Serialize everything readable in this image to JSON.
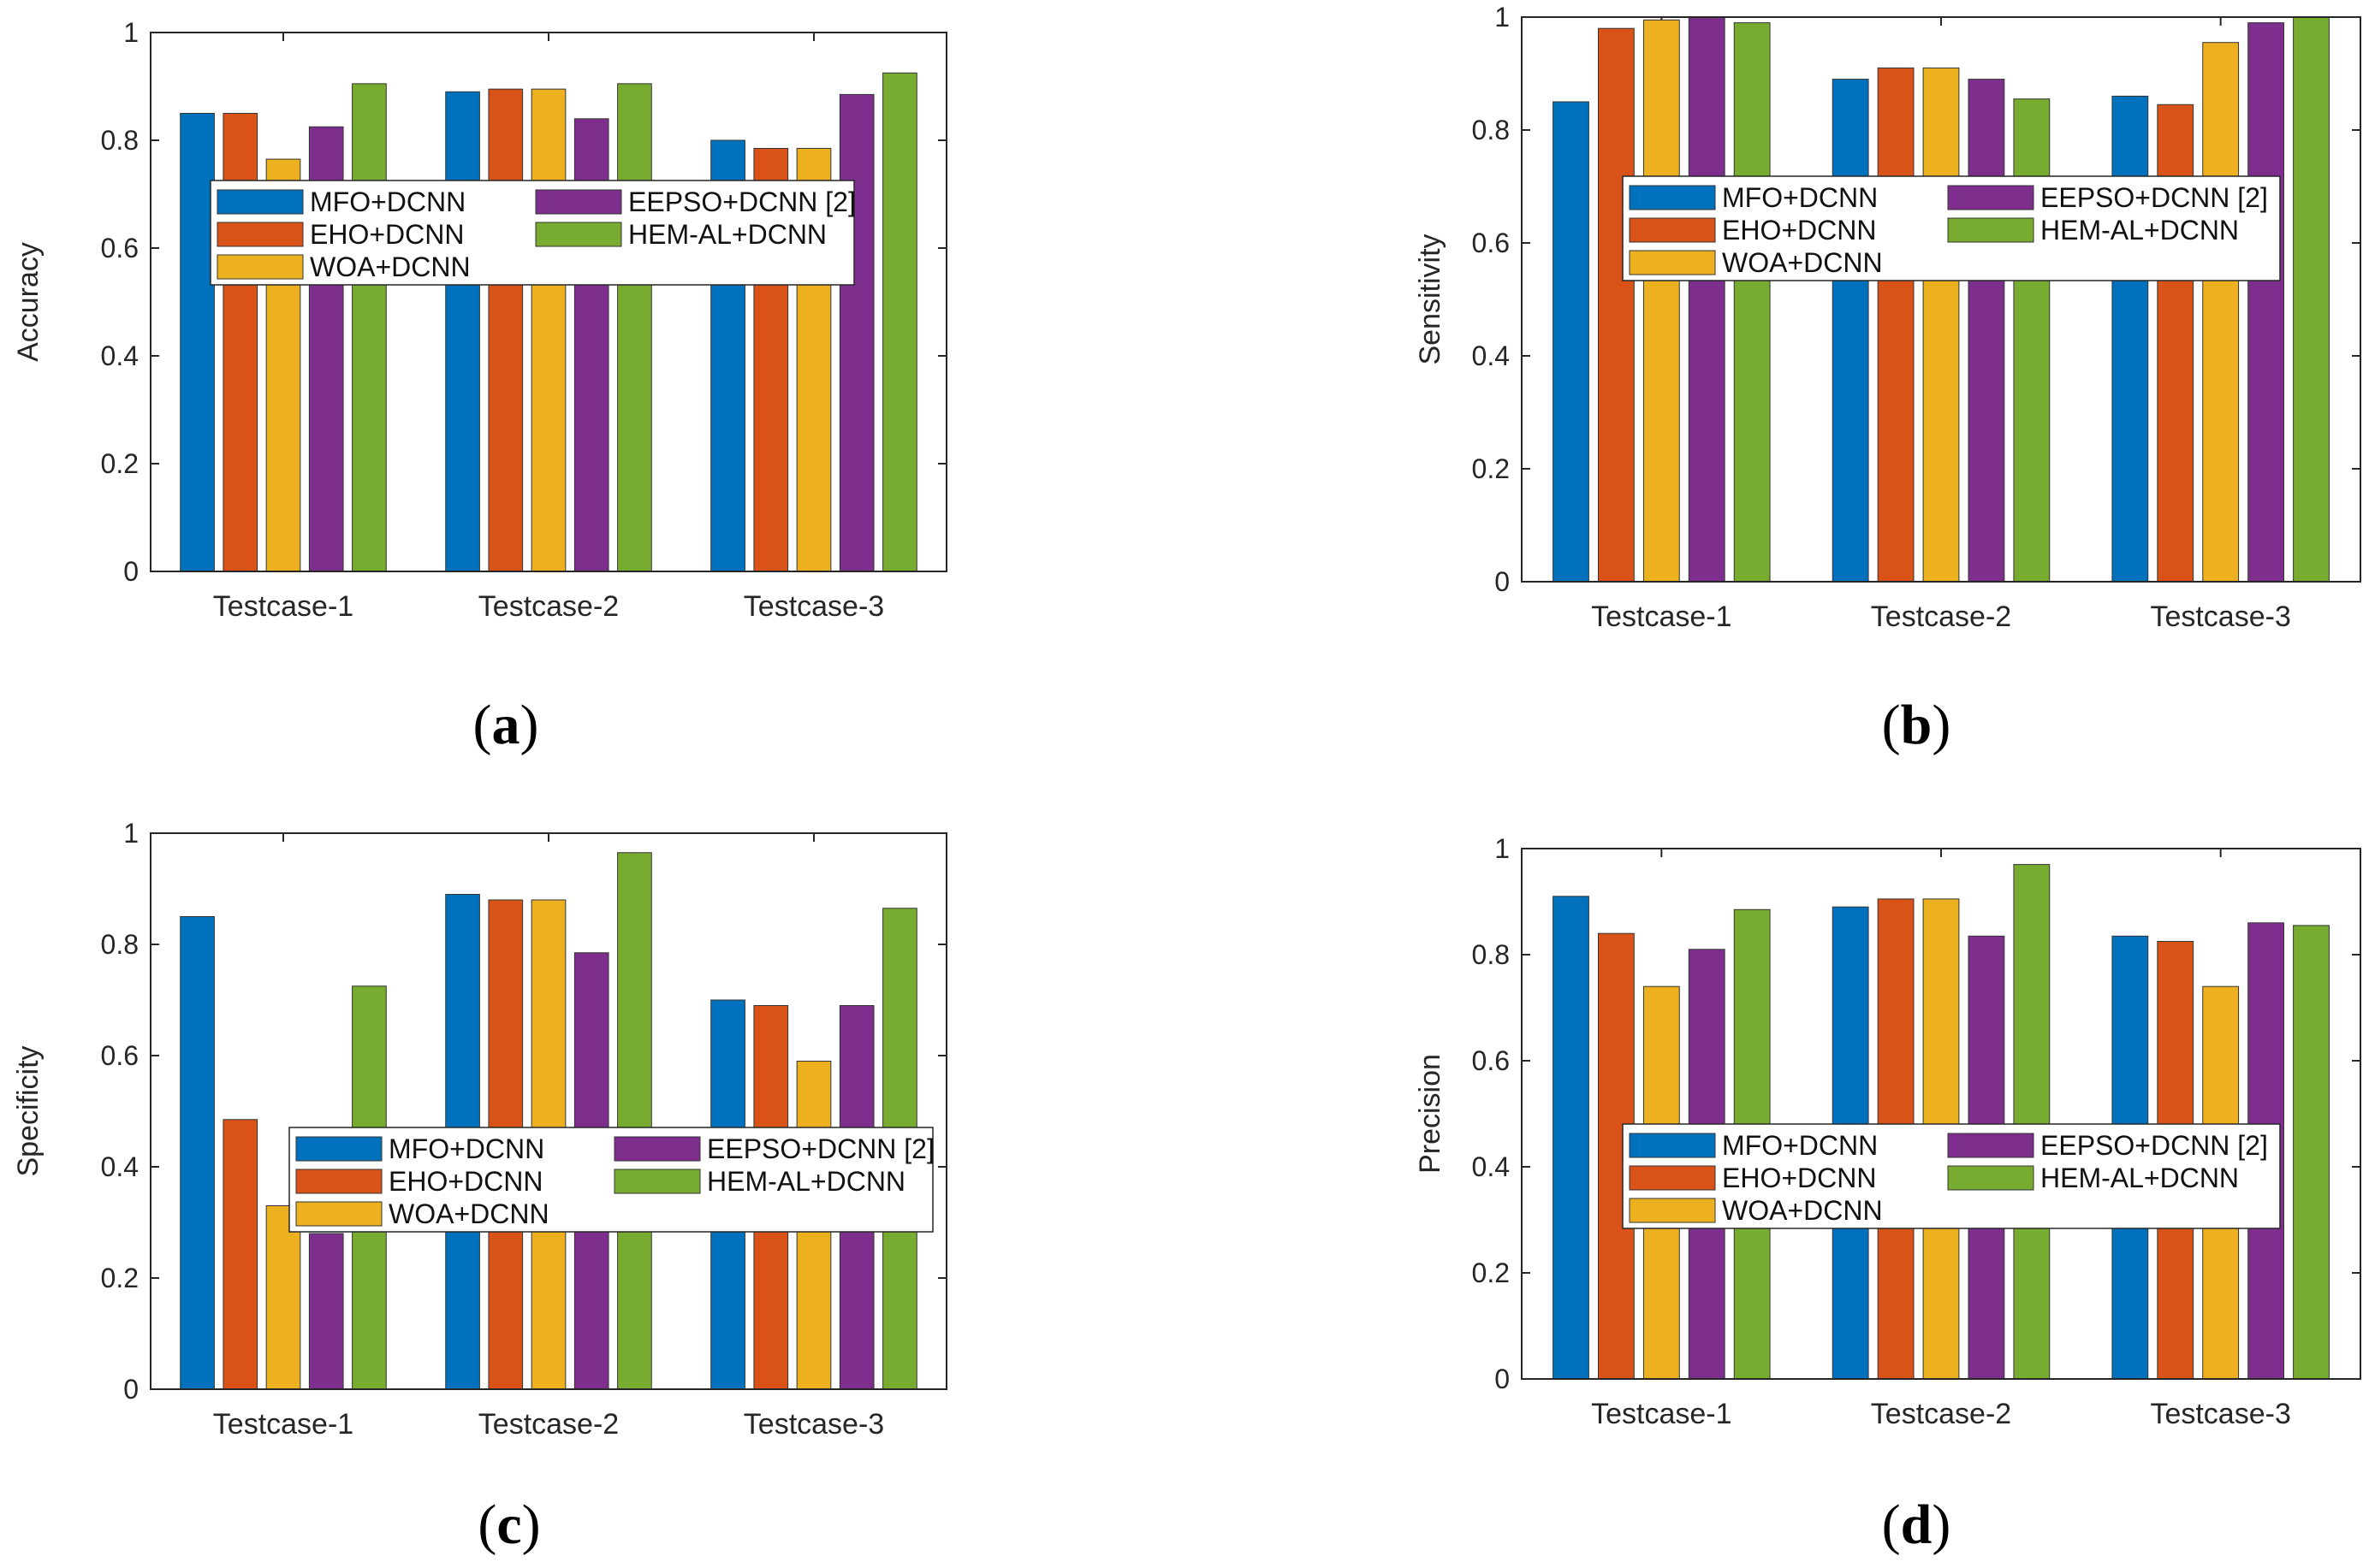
{
  "colors": {
    "MFO+DCNN": "#0072BD",
    "EHO+DCNN": "#D95319",
    "WOA+DCNN": "#EDB120",
    "EEPSO+DCNN [2]": "#7E2F8E",
    "HEM-AL+DCNN": "#77AC30"
  },
  "chart_data": [
    {
      "type": "bar",
      "panel": "a",
      "ylabel": "Accuracy",
      "xlabel": "",
      "ylim": [
        0,
        1
      ],
      "yticks": [
        "0",
        "0.2",
        "0.4",
        "0.6",
        "0.8",
        "1"
      ],
      "categories": [
        "Testcase-1",
        "Testcase-2",
        "Testcase-3"
      ],
      "series": [
        {
          "name": "MFO+DCNN",
          "values": [
            0.85,
            0.89,
            0.8
          ]
        },
        {
          "name": "EHO+DCNN",
          "values": [
            0.85,
            0.895,
            0.785
          ]
        },
        {
          "name": "WOA+DCNN",
          "values": [
            0.765,
            0.895,
            0.785
          ]
        },
        {
          "name": "EEPSO+DCNN [2]",
          "values": [
            0.825,
            0.84,
            0.885
          ]
        },
        {
          "name": "HEM-AL+DCNN",
          "values": [
            0.905,
            0.905,
            0.925
          ]
        }
      ],
      "legend_position": "center"
    },
    {
      "type": "bar",
      "panel": "b",
      "ylabel": "Sensitivity",
      "xlabel": "",
      "ylim": [
        0,
        1
      ],
      "yticks": [
        "0",
        "0.2",
        "0.4",
        "0.6",
        "0.8",
        "1"
      ],
      "categories": [
        "Testcase-1",
        "Testcase-2",
        "Testcase-3"
      ],
      "series": [
        {
          "name": "MFO+DCNN",
          "values": [
            0.85,
            0.89,
            0.86
          ]
        },
        {
          "name": "EHO+DCNN",
          "values": [
            0.98,
            0.91,
            0.845
          ]
        },
        {
          "name": "WOA+DCNN",
          "values": [
            0.995,
            0.91,
            0.955
          ]
        },
        {
          "name": "EEPSO+DCNN [2]",
          "values": [
            1.0,
            0.89,
            0.99
          ]
        },
        {
          "name": "HEM-AL+DCNN",
          "values": [
            0.99,
            0.855,
            1.0
          ]
        }
      ],
      "legend_position": "upper-center"
    },
    {
      "type": "bar",
      "panel": "c",
      "ylabel": "Specificity",
      "xlabel": "",
      "ylim": [
        0,
        1
      ],
      "yticks": [
        "0",
        "0.2",
        "0.4",
        "0.6",
        "0.8",
        "1"
      ],
      "categories": [
        "Testcase-1",
        "Testcase-2",
        "Testcase-3"
      ],
      "series": [
        {
          "name": "MFO+DCNN",
          "values": [
            0.85,
            0.89,
            0.7
          ]
        },
        {
          "name": "EHO+DCNN",
          "values": [
            0.485,
            0.88,
            0.69
          ]
        },
        {
          "name": "WOA+DCNN",
          "values": [
            0.33,
            0.88,
            0.59
          ]
        },
        {
          "name": "EEPSO+DCNN [2]",
          "values": [
            0.28,
            0.785,
            0.69
          ]
        },
        {
          "name": "HEM-AL+DCNN",
          "values": [
            0.725,
            0.965,
            0.865
          ]
        }
      ],
      "legend_position": "center"
    },
    {
      "type": "bar",
      "panel": "d",
      "ylabel": "Precision",
      "xlabel": "",
      "ylim": [
        0,
        1
      ],
      "yticks": [
        "0",
        "0.2",
        "0.4",
        "0.6",
        "0.8",
        "1"
      ],
      "categories": [
        "Testcase-1",
        "Testcase-2",
        "Testcase-3"
      ],
      "series": [
        {
          "name": "MFO+DCNN",
          "values": [
            0.91,
            0.89,
            0.835
          ]
        },
        {
          "name": "EHO+DCNN",
          "values": [
            0.84,
            0.905,
            0.825
          ]
        },
        {
          "name": "WOA+DCNN",
          "values": [
            0.74,
            0.905,
            0.74
          ]
        },
        {
          "name": "EEPSO+DCNN [2]",
          "values": [
            0.81,
            0.835,
            0.86
          ]
        },
        {
          "name": "HEM-AL+DCNN",
          "values": [
            0.885,
            0.97,
            0.855
          ]
        }
      ],
      "legend_position": "center"
    }
  ],
  "captions": [
    "a",
    "b",
    "c",
    "d"
  ]
}
